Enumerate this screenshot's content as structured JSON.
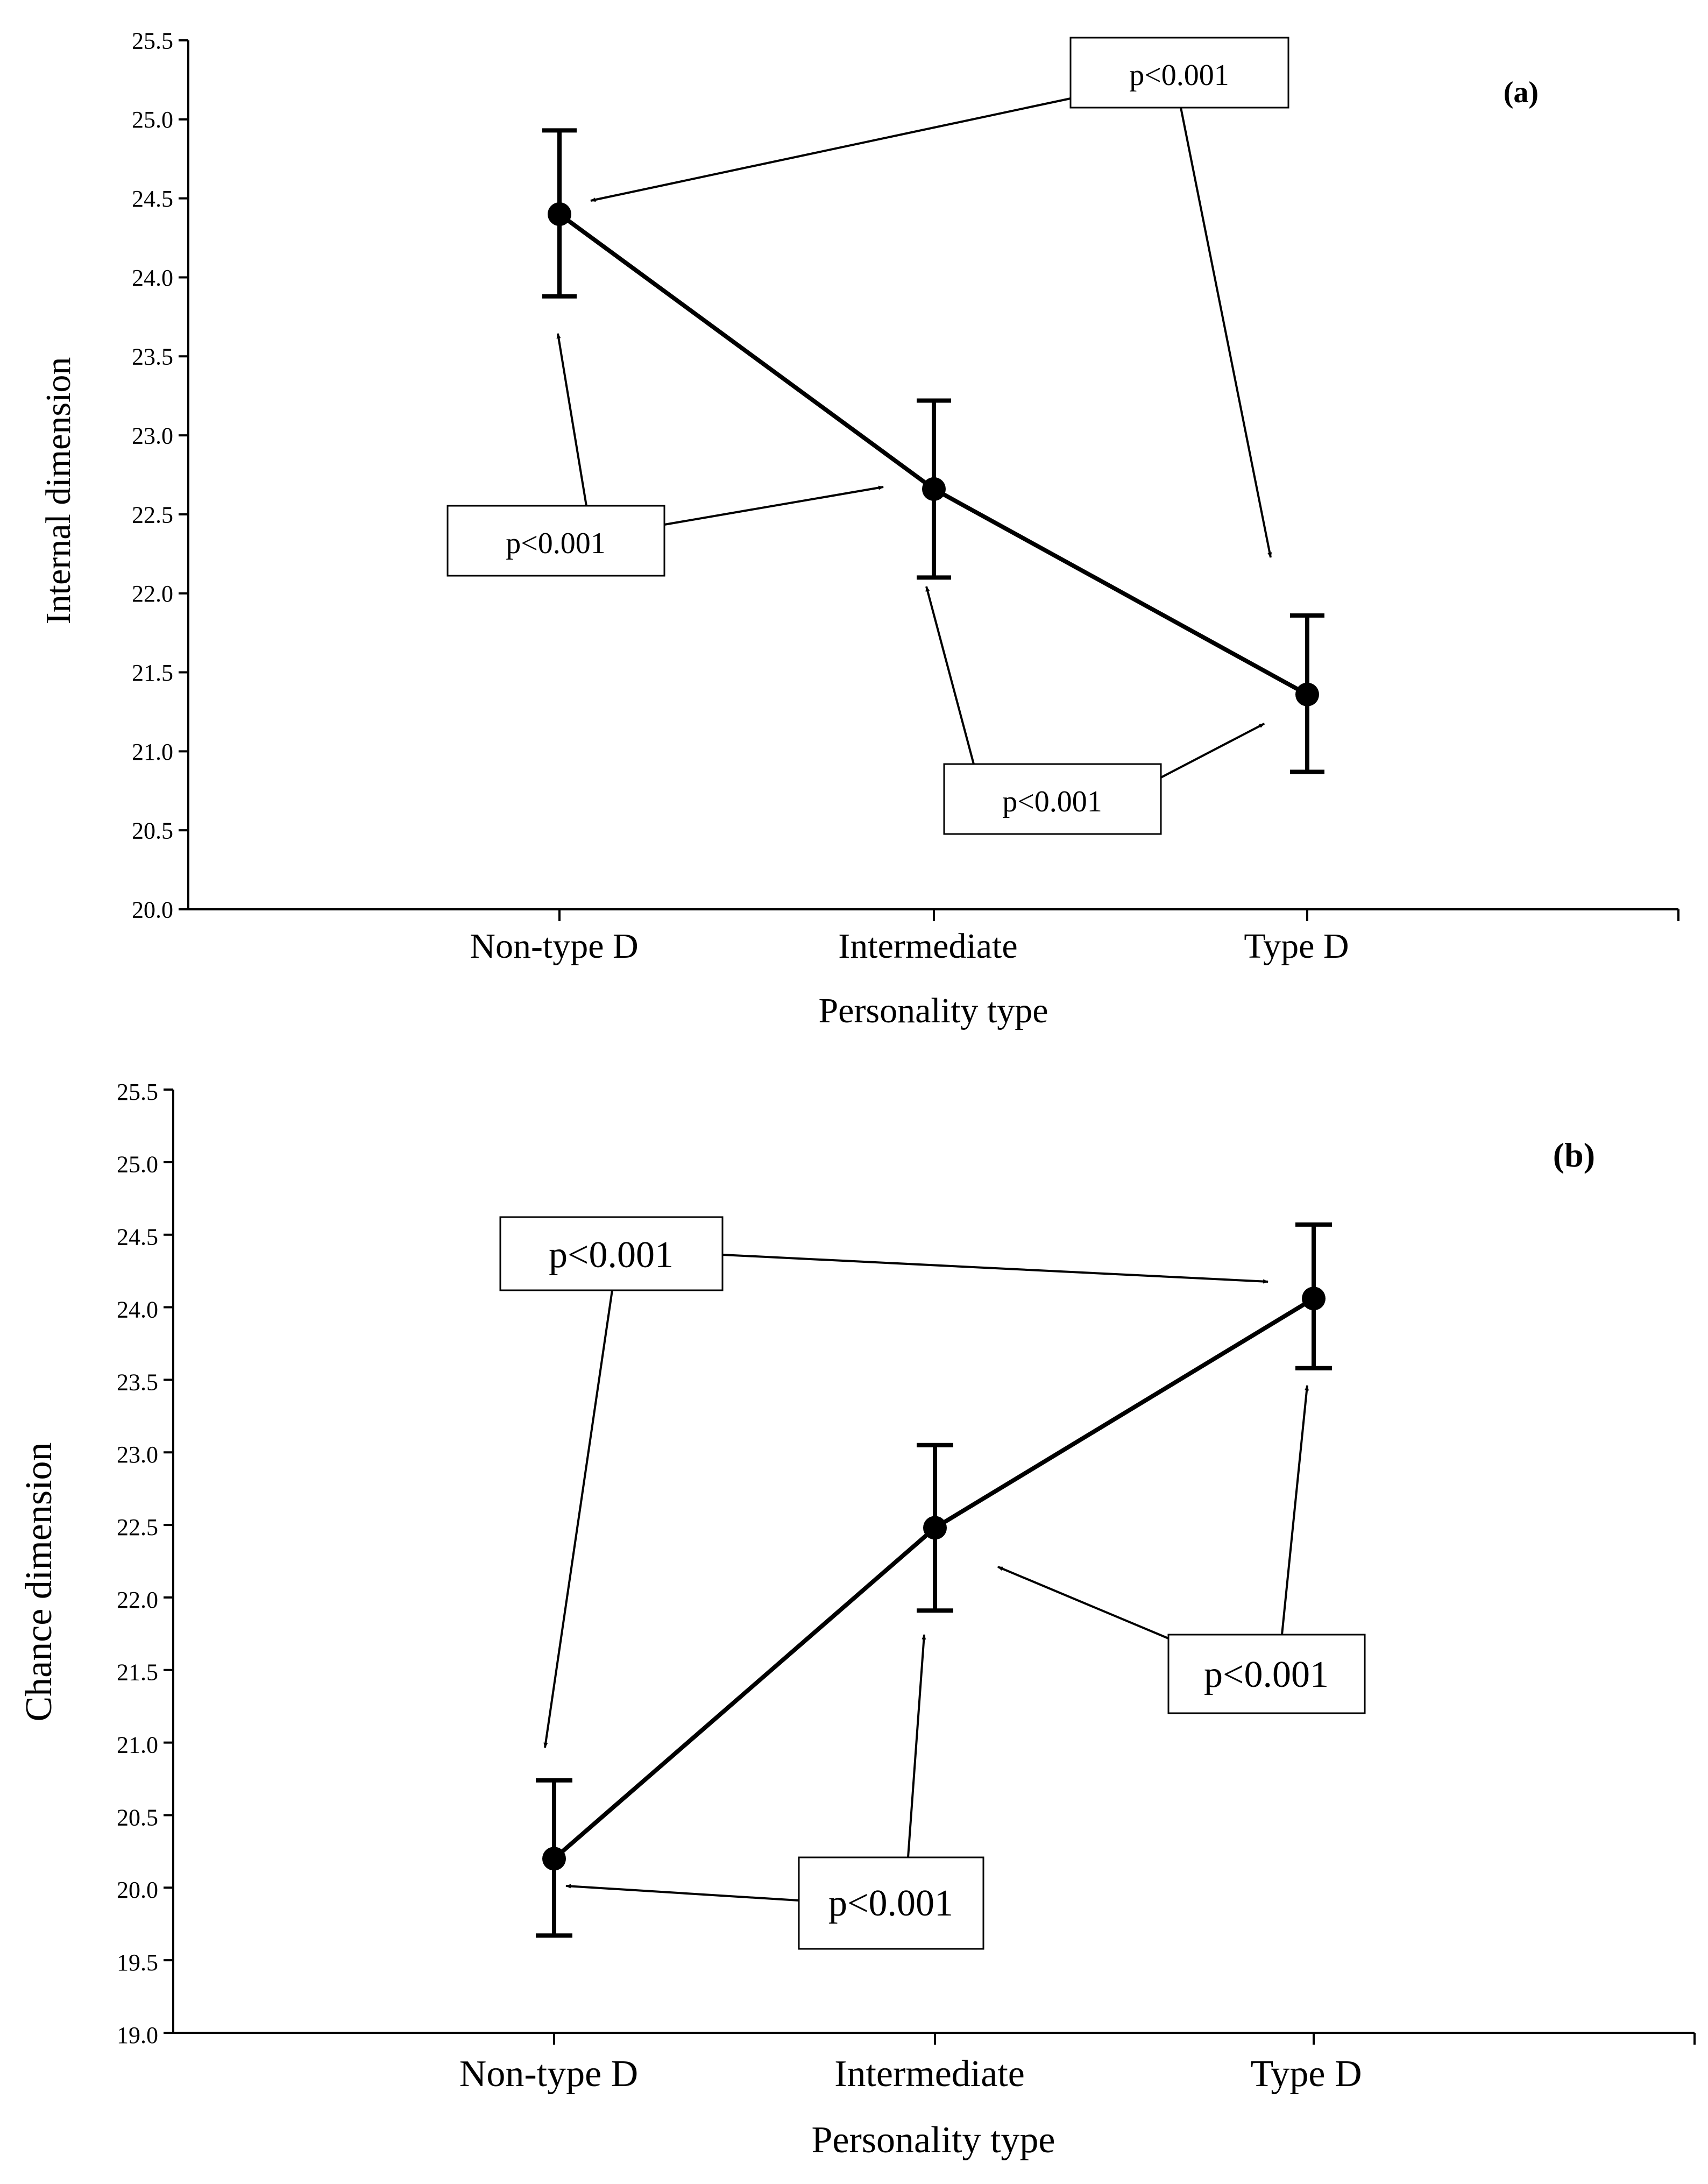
{
  "chart_data": [
    {
      "type": "line",
      "panel_label": "(a)",
      "xlabel": "Personality type",
      "ylabel": "Internal dimension",
      "categories": [
        "Non-type D",
        "Intermediate",
        "Type D"
      ],
      "ylim": [
        20.0,
        25.5
      ],
      "yticks": [
        "20.0",
        "20.5",
        "21.0",
        "21.5",
        "22.0",
        "22.5",
        "23.0",
        "23.5",
        "24.0",
        "24.5",
        "25.0",
        "25.5"
      ],
      "series": [
        {
          "name": "Internal dimension",
          "values": [
            24.4,
            22.66,
            21.36
          ],
          "error_low": [
            23.88,
            22.1,
            20.87
          ],
          "error_high": [
            24.93,
            23.22,
            21.86
          ]
        }
      ],
      "annotations": [
        {
          "text": "p<0.001",
          "from": "Non-type D",
          "to": "Intermediate"
        },
        {
          "text": "p<0.001",
          "from": "Intermediate",
          "to": "Type D"
        },
        {
          "text": "p<0.001",
          "from": "Non-type D",
          "to": "Type D"
        }
      ]
    },
    {
      "type": "line",
      "panel_label": "(b)",
      "xlabel": "Personality type",
      "ylabel": "Chance dimension",
      "categories": [
        "Non-type D",
        "Intermediate",
        "Type D"
      ],
      "ylim": [
        19.0,
        25.5
      ],
      "yticks": [
        "19.0",
        "19.5",
        "20.0",
        "20.5",
        "21.0",
        "21.5",
        "22.0",
        "22.5",
        "23.0",
        "23.5",
        "24.0",
        "24.5",
        "25.0",
        "25.5"
      ],
      "series": [
        {
          "name": "Chance dimension",
          "values": [
            20.2,
            22.48,
            24.06
          ],
          "error_low": [
            19.67,
            21.91,
            23.58
          ],
          "error_high": [
            20.74,
            23.05,
            24.57
          ]
        }
      ],
      "annotations": [
        {
          "text": "p<0.001",
          "from": "Non-type D",
          "to": "Type D"
        },
        {
          "text": "p<0.001",
          "from": "Intermediate",
          "to": "Type D"
        },
        {
          "text": "p<0.001",
          "from": "Non-type D",
          "to": "Intermediate"
        }
      ]
    }
  ]
}
